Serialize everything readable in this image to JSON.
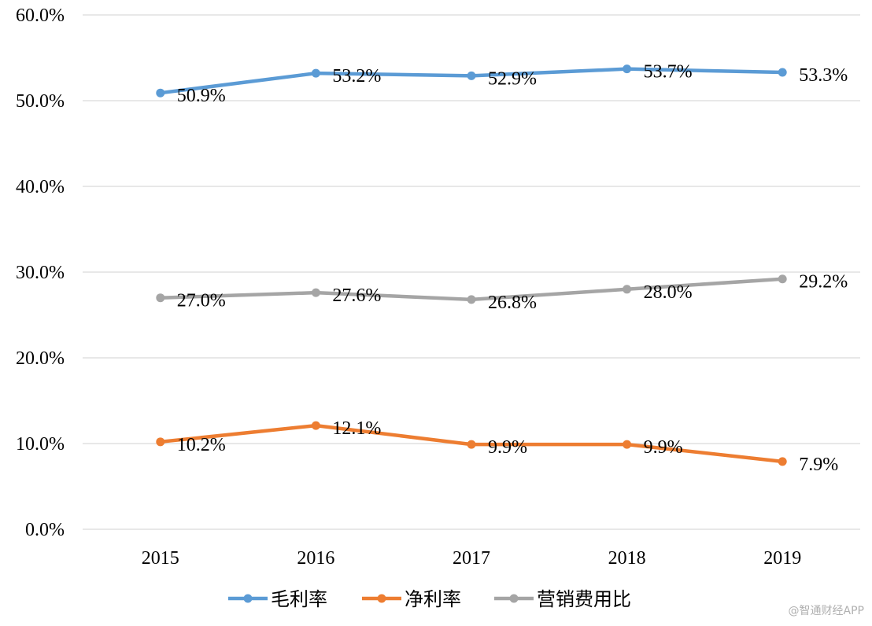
{
  "chart_data": {
    "type": "line",
    "title": "",
    "xlabel": "",
    "ylabel": "",
    "categories": [
      "2015",
      "2016",
      "2017",
      "2018",
      "2019"
    ],
    "ylim": [
      0,
      60
    ],
    "yticks": [
      0,
      10,
      20,
      30,
      40,
      50,
      60
    ],
    "ytick_labels": [
      "0.0%",
      "10.0%",
      "20.0%",
      "30.0%",
      "40.0%",
      "50.0%",
      "60.0%"
    ],
    "grid": true,
    "legend_position": "bottom",
    "series": [
      {
        "name": "毛利率",
        "color": "#5B9BD5",
        "values": [
          50.9,
          53.2,
          52.9,
          53.7,
          53.3
        ],
        "labels": [
          "50.9%",
          "53.2%",
          "52.9%",
          "53.7%",
          "53.3%"
        ]
      },
      {
        "name": "净利率",
        "color": "#ED7D31",
        "values": [
          10.2,
          12.1,
          9.9,
          9.9,
          7.9
        ],
        "labels": [
          "10.2%",
          "12.1%",
          "9.9%",
          "9.9%",
          "7.9%"
        ]
      },
      {
        "name": "营销费用比",
        "color": "#A5A5A5",
        "values": [
          27.0,
          27.6,
          26.8,
          28.0,
          29.2
        ],
        "labels": [
          "27.0%",
          "27.6%",
          "26.8%",
          "28.0%",
          "29.2%"
        ]
      }
    ]
  },
  "watermark": "@智通财经APP",
  "colors": {
    "gridline": "#d9d9d9"
  }
}
